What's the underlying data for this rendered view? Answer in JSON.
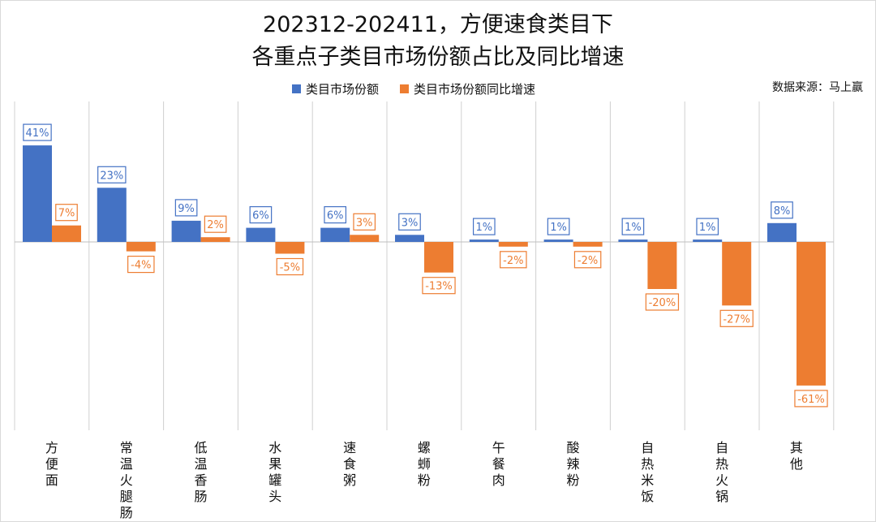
{
  "chart_data": {
    "type": "bar",
    "title_lines": [
      "202312-202411，方便速食类目下",
      "各重点子类目市场份额占比及同比增速"
    ],
    "source": "数据来源：马上赢",
    "categories": [
      "方便面",
      "常温火腿肠",
      "低温香肠",
      "水果罐头",
      "速食粥",
      "螺蛳粉",
      "午餐肉",
      "酸辣粉",
      "自热米饭",
      "自热火锅",
      "其他"
    ],
    "series": [
      {
        "name": "类目市场份额",
        "color": "#4472c4",
        "values": [
          41,
          23,
          9,
          6,
          6,
          3,
          1,
          1,
          1,
          1,
          8
        ],
        "labels": [
          "41%",
          "23%",
          "9%",
          "6%",
          "6%",
          "3%",
          "1%",
          "1%",
          "1%",
          "1%",
          "8%"
        ]
      },
      {
        "name": "类目市场份额同比增速",
        "color": "#ed7d31",
        "values": [
          7,
          -4,
          2,
          -5,
          3,
          -13,
          -2,
          -2,
          -20,
          -27,
          -61
        ],
        "labels": [
          "7%",
          "-4%",
          "2%",
          "-5%",
          "3%",
          "-13%",
          "-2%",
          "-2%",
          "-20%",
          "-27%",
          "-61%"
        ]
      }
    ],
    "ylim": [
      -80,
      60
    ],
    "xlabel": "",
    "ylabel": "",
    "grid": false,
    "legend_position": "top"
  }
}
